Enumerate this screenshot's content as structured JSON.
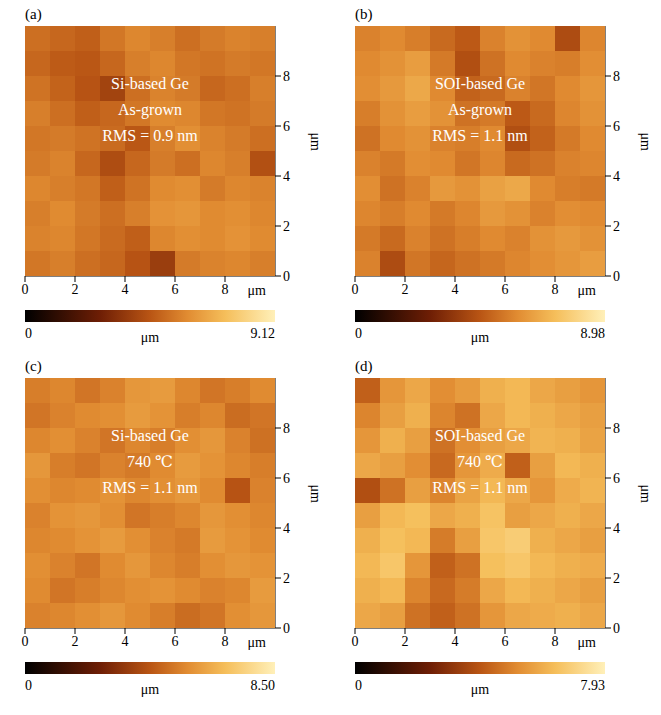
{
  "chart_data": [
    {
      "type": "heatmap",
      "panel": "(a)",
      "annotations": [
        "Si-based Ge",
        "As-grown",
        "RMS = 0.9 nm"
      ],
      "xlim": [
        0,
        10
      ],
      "ylim": [
        0,
        10
      ],
      "xticks": [
        0,
        2,
        4,
        6,
        8
      ],
      "yticks": [
        0,
        2,
        4,
        6,
        8
      ],
      "xlabel": "μm",
      "ylabel": "μm",
      "cells": [
        [
          5.2,
          5.0,
          4.8,
          5.4,
          5.8,
          5.6,
          5.2,
          5.5,
          5.7,
          5.6
        ],
        [
          5.0,
          4.7,
          4.6,
          5.0,
          5.6,
          5.8,
          5.4,
          5.3,
          5.5,
          5.4
        ],
        [
          5.3,
          4.9,
          4.5,
          4.0,
          5.2,
          5.7,
          5.5,
          5.0,
          5.2,
          5.6
        ],
        [
          5.6,
          5.2,
          4.8,
          5.0,
          5.4,
          5.9,
          5.8,
          5.4,
          5.3,
          5.5
        ],
        [
          5.4,
          5.5,
          5.3,
          5.1,
          4.6,
          5.6,
          6.0,
          5.7,
          5.5,
          5.2
        ],
        [
          5.5,
          5.7,
          5.0,
          4.3,
          5.0,
          5.5,
          5.2,
          5.8,
          5.6,
          4.4
        ],
        [
          5.8,
          5.6,
          5.4,
          4.8,
          5.3,
          5.9,
          6.0,
          5.5,
          5.8,
          5.7
        ],
        [
          5.6,
          5.9,
          5.5,
          5.2,
          5.6,
          6.1,
          6.2,
          5.9,
          6.0,
          5.8
        ],
        [
          5.7,
          5.8,
          5.4,
          5.1,
          4.8,
          5.8,
          6.0,
          5.9,
          6.1,
          5.9
        ],
        [
          5.4,
          5.6,
          5.2,
          5.0,
          4.5,
          3.8,
          5.5,
          5.7,
          5.8,
          5.6
        ]
      ],
      "colorbar": {
        "range": [
          0,
          9.12
        ],
        "ticks": [
          0,
          9.12
        ],
        "label": "μm"
      }
    },
    {
      "type": "heatmap",
      "panel": "(b)",
      "annotations": [
        "SOI-based Ge",
        "As-grown",
        "RMS = 1.1 nm"
      ],
      "xlim": [
        0,
        10
      ],
      "ylim": [
        0,
        10
      ],
      "xticks": [
        0,
        2,
        4,
        6,
        8
      ],
      "yticks": [
        0,
        2,
        4,
        6,
        8
      ],
      "xlabel": "μm",
      "ylabel": "μm",
      "cells": [
        [
          5.6,
          5.8,
          5.5,
          5.0,
          4.6,
          5.6,
          6.0,
          5.8,
          4.2,
          5.7
        ],
        [
          5.8,
          6.0,
          6.3,
          5.4,
          4.3,
          5.2,
          5.8,
          5.6,
          5.5,
          5.9
        ],
        [
          5.9,
          6.2,
          6.6,
          5.8,
          4.8,
          5.0,
          5.6,
          5.3,
          5.8,
          6.1
        ],
        [
          5.5,
          6.0,
          6.3,
          6.0,
          5.2,
          5.4,
          4.6,
          5.0,
          5.7,
          6.0
        ],
        [
          5.2,
          5.8,
          6.0,
          5.6,
          5.5,
          5.8,
          4.3,
          4.8,
          5.4,
          5.8
        ],
        [
          5.6,
          5.4,
          5.9,
          5.8,
          5.3,
          5.7,
          5.0,
          5.2,
          5.6,
          5.7
        ],
        [
          5.9,
          5.2,
          5.6,
          6.2,
          6.0,
          6.4,
          6.6,
          5.8,
          5.5,
          5.4
        ],
        [
          5.7,
          5.5,
          5.8,
          5.4,
          5.7,
          6.2,
          6.0,
          5.6,
          5.9,
          5.8
        ],
        [
          5.4,
          5.0,
          5.6,
          5.2,
          5.5,
          5.8,
          5.6,
          6.0,
          6.2,
          6.0
        ],
        [
          5.6,
          4.2,
          5.3,
          4.9,
          5.2,
          5.4,
          5.7,
          5.9,
          6.1,
          6.3
        ]
      ],
      "colorbar": {
        "range": [
          0,
          8.98
        ],
        "ticks": [
          0,
          8.98
        ],
        "label": "μm"
      }
    },
    {
      "type": "heatmap",
      "panel": "(c)",
      "annotations": [
        "Si-based Ge",
        "740 ℃",
        "RMS = 1.1 nm"
      ],
      "xlim": [
        0,
        10
      ],
      "ylim": [
        0,
        10
      ],
      "xticks": [
        0,
        2,
        4,
        6,
        8
      ],
      "yticks": [
        0,
        2,
        4,
        6,
        8
      ],
      "xlabel": "μm",
      "ylabel": "μm",
      "cells": [
        [
          5.2,
          5.4,
          5.0,
          5.3,
          5.8,
          5.9,
          5.4,
          5.0,
          5.2,
          5.5
        ],
        [
          5.0,
          5.3,
          5.5,
          5.6,
          5.9,
          5.7,
          5.2,
          5.4,
          4.8,
          5.0
        ],
        [
          5.4,
          5.6,
          5.3,
          5.0,
          5.4,
          5.2,
          5.6,
          5.8,
          5.3,
          4.9
        ],
        [
          5.8,
          5.2,
          5.0,
          5.3,
          5.1,
          5.5,
          5.9,
          5.7,
          5.4,
          5.2
        ],
        [
          5.6,
          5.4,
          5.5,
          5.7,
          5.4,
          5.6,
          5.8,
          5.5,
          4.2,
          5.3
        ],
        [
          5.3,
          5.7,
          5.8,
          5.6,
          5.0,
          5.2,
          5.4,
          5.8,
          5.6,
          5.4
        ],
        [
          5.4,
          5.5,
          5.7,
          5.9,
          5.6,
          5.3,
          5.1,
          5.9,
          5.7,
          5.5
        ],
        [
          5.6,
          5.3,
          5.0,
          5.5,
          5.8,
          5.4,
          5.2,
          5.6,
          5.8,
          5.7
        ],
        [
          5.5,
          5.0,
          5.2,
          5.4,
          5.6,
          5.7,
          5.5,
          5.3,
          5.4,
          5.9
        ],
        [
          5.3,
          5.4,
          5.6,
          5.8,
          5.5,
          5.2,
          4.8,
          5.0,
          5.6,
          5.8
        ]
      ],
      "colorbar": {
        "range": [
          0,
          8.5
        ],
        "ticks": [
          0,
          {
            "value": 8.5,
            "label": "8.50"
          }
        ],
        "label": "μm"
      }
    },
    {
      "type": "heatmap",
      "panel": "(d)",
      "annotations": [
        "SOI-based Ge",
        "740 ℃",
        "RMS = 1.1 nm"
      ],
      "xlim": [
        0,
        10
      ],
      "ylim": [
        0,
        10
      ],
      "xticks": [
        0,
        2,
        4,
        6,
        8
      ],
      "yticks": [
        0,
        2,
        4,
        6,
        8
      ],
      "xlabel": "μm",
      "ylabel": "μm",
      "cells": [
        [
          4.2,
          5.4,
          5.8,
          5.2,
          5.5,
          6.0,
          6.2,
          5.8,
          5.6,
          5.4
        ],
        [
          5.0,
          5.6,
          6.0,
          5.0,
          4.6,
          5.8,
          6.2,
          6.0,
          5.8,
          5.6
        ],
        [
          5.4,
          6.0,
          5.6,
          4.6,
          5.2,
          5.6,
          5.8,
          6.1,
          6.0,
          5.7
        ],
        [
          5.8,
          5.6,
          5.2,
          4.4,
          5.4,
          5.9,
          4.2,
          5.6,
          6.2,
          6.0
        ],
        [
          3.8,
          4.6,
          5.6,
          5.0,
          5.7,
          6.2,
          5.8,
          5.4,
          5.9,
          6.1
        ],
        [
          5.6,
          6.2,
          6.4,
          5.8,
          6.0,
          6.5,
          5.6,
          5.8,
          6.0,
          5.8
        ],
        [
          6.0,
          6.4,
          6.2,
          4.8,
          5.6,
          6.6,
          6.8,
          6.0,
          5.8,
          5.6
        ],
        [
          6.2,
          6.6,
          5.4,
          4.2,
          4.6,
          6.4,
          6.6,
          6.2,
          6.0,
          5.9
        ],
        [
          6.0,
          6.2,
          5.0,
          4.4,
          4.8,
          5.8,
          6.2,
          6.0,
          5.8,
          5.6
        ],
        [
          5.8,
          5.6,
          4.6,
          4.2,
          4.6,
          5.4,
          5.8,
          5.9,
          6.0,
          5.8
        ]
      ],
      "colorbar": {
        "range": [
          0,
          7.93
        ],
        "ticks": [
          0,
          7.93
        ],
        "label": "μm"
      }
    }
  ]
}
